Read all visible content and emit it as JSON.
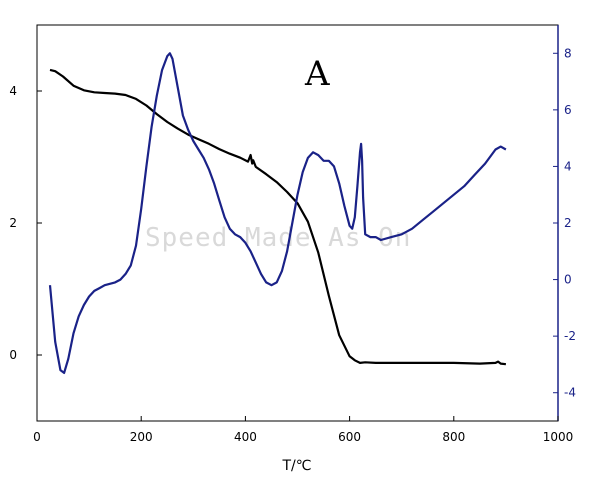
{
  "chart_data": {
    "type": "line",
    "title": "",
    "panel_label": "A",
    "watermark": "Speed Made As On",
    "xlabel": "T/℃",
    "ylabel_left": "",
    "ylabel_right": "",
    "xlim": [
      0,
      1000
    ],
    "ylim_left": [
      -1,
      5
    ],
    "ylim_right": [
      -5,
      9
    ],
    "x_ticks": [
      0,
      200,
      400,
      600,
      800,
      1000
    ],
    "y_left_ticks": [
      0,
      2,
      4
    ],
    "y_right_ticks": [
      -4,
      -2,
      0,
      2,
      4,
      6,
      8
    ],
    "grid": false,
    "colors": {
      "left_series": "#000000",
      "right_series": "#1a2288",
      "right_axis": "#1a2288"
    },
    "series": [
      {
        "axis": "left",
        "color": "#000000",
        "x": [
          25,
          35,
          50,
          70,
          90,
          110,
          130,
          150,
          170,
          190,
          210,
          230,
          250,
          270,
          290,
          310,
          330,
          350,
          370,
          390,
          405,
          410,
          413,
          415,
          420,
          440,
          460,
          480,
          500,
          520,
          540,
          560,
          580,
          600,
          610,
          620,
          630,
          650,
          700,
          750,
          800,
          850,
          880,
          885,
          890,
          900
        ],
        "y": [
          4.32,
          4.3,
          4.22,
          4.08,
          4.01,
          3.98,
          3.97,
          3.96,
          3.94,
          3.88,
          3.78,
          3.65,
          3.53,
          3.43,
          3.34,
          3.27,
          3.2,
          3.12,
          3.05,
          2.99,
          2.93,
          3.03,
          2.9,
          2.95,
          2.85,
          2.74,
          2.62,
          2.47,
          2.3,
          2.02,
          1.55,
          0.9,
          0.3,
          -0.02,
          -0.08,
          -0.12,
          -0.11,
          -0.12,
          -0.12,
          -0.12,
          -0.12,
          -0.13,
          -0.12,
          -0.1,
          -0.13,
          -0.14
        ]
      },
      {
        "axis": "right",
        "color": "#1a2288",
        "x": [
          25,
          35,
          45,
          52,
          60,
          70,
          80,
          90,
          100,
          110,
          120,
          130,
          140,
          150,
          160,
          170,
          180,
          190,
          200,
          210,
          220,
          230,
          240,
          250,
          255,
          260,
          270,
          280,
          290,
          300,
          310,
          320,
          330,
          340,
          350,
          360,
          370,
          380,
          390,
          400,
          410,
          420,
          430,
          440,
          450,
          460,
          470,
          480,
          490,
          500,
          510,
          520,
          530,
          540,
          550,
          560,
          570,
          580,
          590,
          600,
          605,
          610,
          615,
          620,
          622,
          624,
          626,
          630,
          640,
          650,
          660,
          680,
          700,
          720,
          740,
          760,
          780,
          800,
          820,
          840,
          860,
          880,
          890,
          900
        ],
        "y": [
          -0.2,
          -2.2,
          -3.2,
          -3.3,
          -2.8,
          -1.9,
          -1.3,
          -0.9,
          -0.6,
          -0.4,
          -0.3,
          -0.2,
          -0.15,
          -0.1,
          0.0,
          0.2,
          0.5,
          1.2,
          2.5,
          4.0,
          5.4,
          6.5,
          7.4,
          7.9,
          8.0,
          7.8,
          6.8,
          5.8,
          5.3,
          4.9,
          4.6,
          4.3,
          3.9,
          3.4,
          2.8,
          2.2,
          1.8,
          1.6,
          1.5,
          1.3,
          1.0,
          0.6,
          0.2,
          -0.1,
          -0.2,
          -0.1,
          0.3,
          1.0,
          2.0,
          3.0,
          3.8,
          4.3,
          4.5,
          4.4,
          4.2,
          4.2,
          4.0,
          3.4,
          2.6,
          1.9,
          1.8,
          2.2,
          3.3,
          4.5,
          4.8,
          4.2,
          2.9,
          1.6,
          1.5,
          1.5,
          1.4,
          1.5,
          1.6,
          1.8,
          2.1,
          2.4,
          2.7,
          3.0,
          3.3,
          3.7,
          4.1,
          4.6,
          4.7,
          4.6
        ]
      }
    ]
  }
}
